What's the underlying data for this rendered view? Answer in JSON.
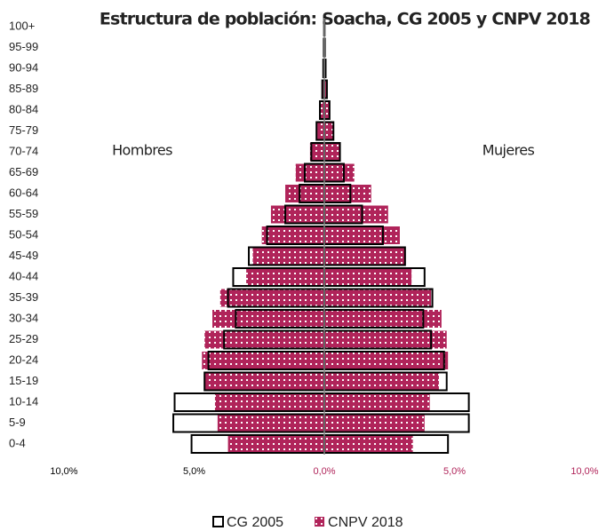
{
  "chart_data": {
    "type": "pyramid",
    "title": "Estructura de población: Soacha, CG 2005 y CNPV 2018",
    "left_label": "Hombres",
    "right_label": "Mujeres",
    "categories": [
      "0-4",
      "5-9",
      "10-14",
      "15-19",
      "20-24",
      "25-29",
      "30-34",
      "35-39",
      "40-44",
      "45-49",
      "50-54",
      "55-59",
      "60-64",
      "65-69",
      "70-74",
      "75-79",
      "80-84",
      "85-89",
      "90-94",
      "95-99",
      "100+"
    ],
    "series": [
      {
        "name": "CNPV 2018",
        "color": "#b0245a",
        "style": "pattern",
        "male_values": [
          -3.7,
          -4.1,
          -4.2,
          -4.6,
          -4.7,
          -4.6,
          -4.3,
          -4.0,
          -3.0,
          -2.75,
          -2.4,
          -2.05,
          -1.5,
          -1.1,
          -0.55,
          -0.27,
          -0.14,
          -0.07,
          -0.03,
          -0.01,
          -0.01
        ],
        "female_values": [
          3.4,
          3.85,
          4.05,
          4.4,
          4.75,
          4.7,
          4.5,
          4.1,
          3.35,
          3.1,
          2.9,
          2.45,
          1.8,
          1.15,
          0.6,
          0.37,
          0.22,
          0.12,
          0.06,
          0.03,
          0.01
        ]
      },
      {
        "name": "CG 2005",
        "color": "#000000",
        "style": "outline",
        "male_values": [
          -5.1,
          -5.8,
          -5.75,
          -4.6,
          -4.45,
          -3.85,
          -3.4,
          -3.7,
          -3.5,
          -2.9,
          -2.2,
          -1.5,
          -0.95,
          -0.75,
          -0.5,
          -0.3,
          -0.17,
          -0.08,
          -0.04,
          -0.02,
          -0.01
        ],
        "female_values": [
          4.75,
          5.55,
          5.55,
          4.7,
          4.6,
          4.1,
          3.8,
          4.15,
          3.85,
          3.1,
          2.25,
          1.45,
          1.0,
          0.75,
          0.6,
          0.35,
          0.2,
          0.1,
          0.05,
          0.02,
          0.01
        ]
      }
    ],
    "legend_order": [
      1,
      0
    ],
    "xlim": [
      -10,
      10
    ],
    "xticks": [
      {
        "value": -10,
        "label": "10,0%"
      },
      {
        "value": -5,
        "label": "5,0%"
      },
      {
        "value": 0,
        "label": "0,0%"
      },
      {
        "value": 5,
        "label": "5,0%"
      },
      {
        "value": 10,
        "label": "10,0%"
      }
    ],
    "tick_colors": {
      "negative": "#000000",
      "positive": "#b0245a"
    }
  }
}
